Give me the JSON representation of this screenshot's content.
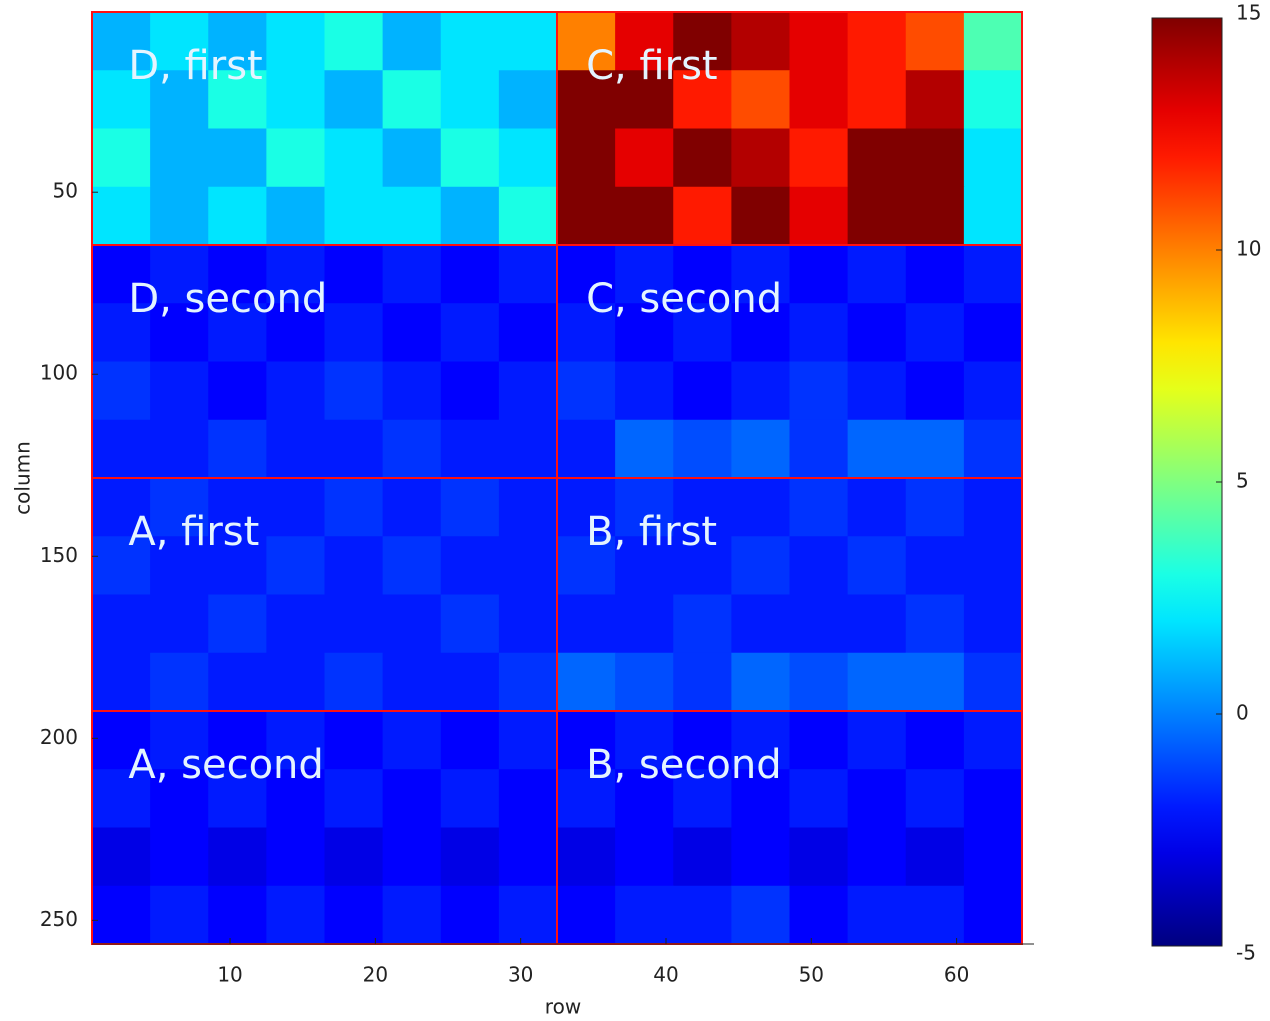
{
  "chart_data": {
    "type": "heatmap",
    "xlabel": "row",
    "ylabel": "column",
    "xlim": [
      0.5,
      64.5
    ],
    "ylim": [
      0.5,
      256.5
    ],
    "xticks": [
      10,
      20,
      30,
      40,
      50,
      60
    ],
    "yticks": [
      50,
      100,
      150,
      200,
      250
    ],
    "clim": [
      -5,
      15
    ],
    "cticks": [
      -5,
      0,
      5,
      10,
      15
    ],
    "colormap": "jet",
    "z": [
      [
        1,
        2,
        1,
        2,
        3,
        1,
        2,
        2,
        10,
        13,
        15,
        14,
        13,
        12,
        11,
        4
      ],
      [
        2,
        1,
        3,
        2,
        1,
        3,
        2,
        1,
        15,
        15,
        12,
        11,
        13,
        12,
        14,
        3
      ],
      [
        3,
        1,
        1,
        3,
        2,
        1,
        3,
        2,
        15,
        13,
        15,
        14,
        12,
        15,
        15,
        2
      ],
      [
        2,
        1,
        2,
        1,
        2,
        2,
        1,
        3,
        15,
        15,
        12,
        15,
        13,
        15,
        15,
        2
      ],
      [
        -2.5,
        -2,
        -2.5,
        -2,
        -2.5,
        -2,
        -2.5,
        -2,
        -2.5,
        -2,
        -2.5,
        -2,
        -2.5,
        -2,
        -2.5,
        -2
      ],
      [
        -2,
        -2.5,
        -2,
        -2.5,
        -2,
        -2.5,
        -2,
        -2.5,
        -2,
        -2.5,
        -2,
        -2.5,
        -2,
        -2.5,
        -2,
        -2.5
      ],
      [
        -1.5,
        -2,
        -2.5,
        -2,
        -1.5,
        -2,
        -2.5,
        -2,
        -1.5,
        -2,
        -2.5,
        -2,
        -1.5,
        -2,
        -2.5,
        -2
      ],
      [
        -2,
        -2,
        -1.5,
        -2,
        -2,
        -1.5,
        -2,
        -2,
        -2,
        -0.5,
        -1,
        -0.5,
        -1.5,
        -0.5,
        -0.5,
        -1.5
      ],
      [
        -2,
        -1.5,
        -2,
        -2,
        -1.5,
        -2,
        -1.5,
        -2,
        -2,
        -1.5,
        -2,
        -2,
        -1.5,
        -2,
        -1.5,
        -2
      ],
      [
        -1.5,
        -2,
        -2,
        -1.5,
        -2,
        -1.5,
        -2,
        -2,
        -1.5,
        -2,
        -2,
        -1.5,
        -2,
        -1.5,
        -2,
        -2
      ],
      [
        -2,
        -2,
        -1.5,
        -2,
        -2,
        -2,
        -1.5,
        -2,
        -2,
        -2,
        -1.5,
        -2,
        -2,
        -2,
        -1.5,
        -2
      ],
      [
        -2,
        -1.5,
        -2,
        -2,
        -1.5,
        -2,
        -2,
        -1.5,
        -0.5,
        -1,
        -1.5,
        -0.5,
        -1,
        -0.5,
        -0.5,
        -1.5
      ],
      [
        -2.5,
        -2,
        -2.5,
        -2,
        -2.5,
        -2,
        -2.5,
        -2,
        -2.5,
        -2,
        -2.5,
        -2,
        -2.5,
        -2,
        -2.5,
        -2
      ],
      [
        -2,
        -2.5,
        -2,
        -2.5,
        -2,
        -2.5,
        -2,
        -2.5,
        -2,
        -2.5,
        -2,
        -2.5,
        -2,
        -2.5,
        -2,
        -2.5
      ],
      [
        -3,
        -2.5,
        -3,
        -2.5,
        -3,
        -2.5,
        -3,
        -2.5,
        -3,
        -2.5,
        -3,
        -2.5,
        -3,
        -2.5,
        -3,
        -2.5
      ],
      [
        -2.5,
        -2,
        -2.5,
        -2,
        -2.5,
        -2,
        -2.5,
        -2,
        -2.5,
        -2,
        -2,
        -1.5,
        -2.5,
        -2,
        -2,
        -2.5
      ]
    ],
    "dividers_x": [
      32.5
    ],
    "dividers_y": [
      64.5,
      128.5,
      192.5
    ],
    "divider_color": "#ff1010",
    "regions": [
      {
        "label": "D, first",
        "x": 3,
        "y": 15
      },
      {
        "label": "C, first",
        "x": 34.5,
        "y": 15
      },
      {
        "label": "D, second",
        "x": 3,
        "y": 79
      },
      {
        "label": "C, second",
        "x": 34.5,
        "y": 79
      },
      {
        "label": "A, first",
        "x": 3,
        "y": 143
      },
      {
        "label": "B, first",
        "x": 34.5,
        "y": 143
      },
      {
        "label": "A, second",
        "x": 3,
        "y": 207
      },
      {
        "label": "B, second",
        "x": 34.5,
        "y": 207
      }
    ]
  }
}
